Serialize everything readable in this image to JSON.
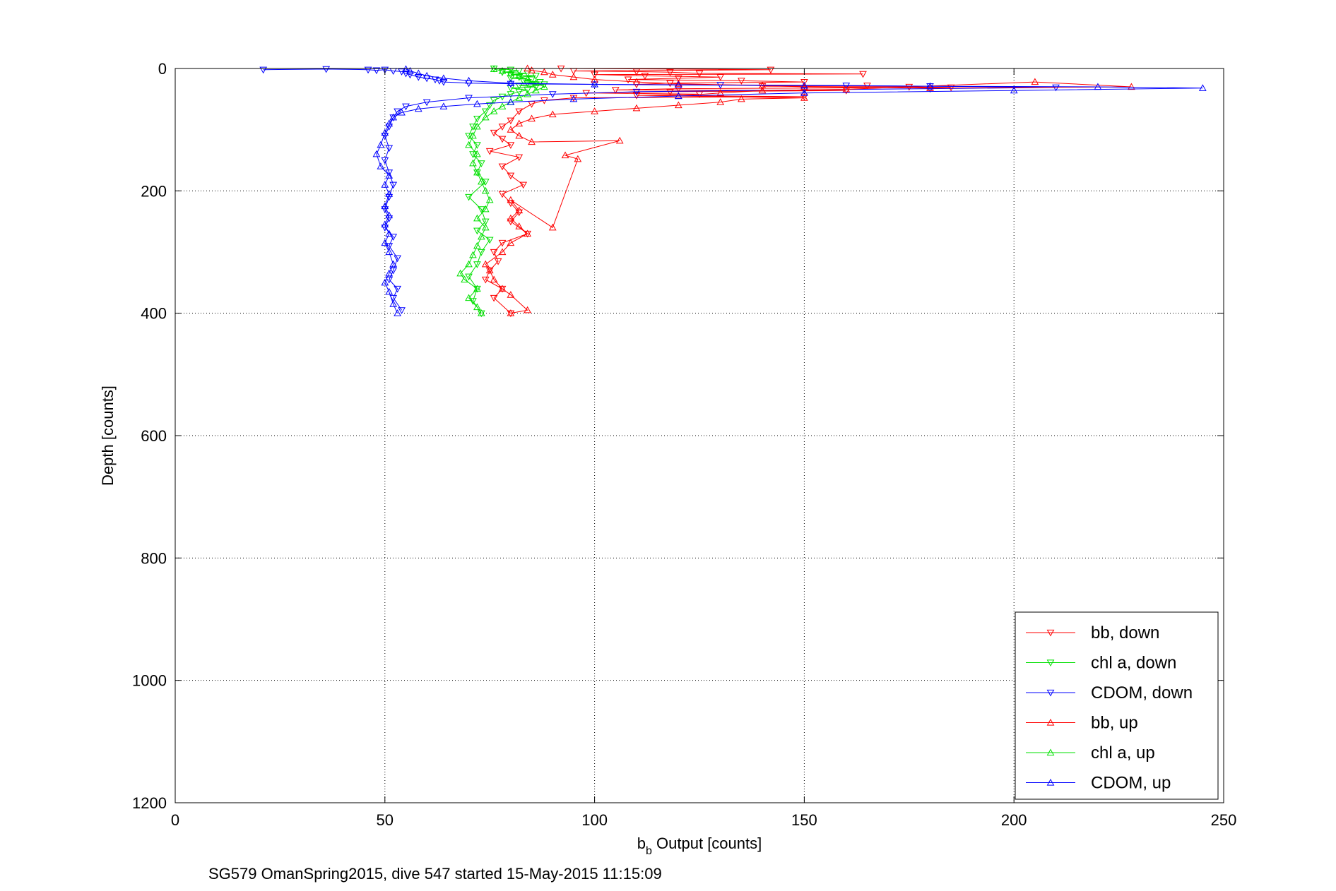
{
  "chart_data": {
    "type": "scatter",
    "title": "",
    "xlabel_main": "b",
    "xlabel_sub": "b",
    "xlabel_rest": " Output [counts]",
    "ylabel": "Depth [counts]",
    "caption": "SG579 OmanSpring2015, dive 547 started 15-May-2015 11:15:09",
    "xlim": [
      0,
      250
    ],
    "ylim": [
      0,
      1200
    ],
    "y_reversed": true,
    "grid": true,
    "legend_position": "bottom-right",
    "xticks": [
      0,
      50,
      100,
      150,
      200,
      250
    ],
    "xtick_labels": [
      "0",
      "50",
      "100",
      "150",
      "200",
      "250"
    ],
    "yticks": [
      0,
      200,
      400,
      600,
      800,
      1000,
      1200
    ],
    "ytick_labels": [
      "0",
      "200",
      "400",
      "600",
      "800",
      "1000",
      "1200"
    ],
    "series": [
      {
        "name": "bb, down",
        "color": "#ff0000",
        "marker": "triangle-down",
        "connected": true,
        "points": [
          [
            92,
            0
          ],
          [
            142,
            2
          ],
          [
            95,
            4
          ],
          [
            110,
            5
          ],
          [
            118,
            6
          ],
          [
            125,
            8
          ],
          [
            164,
            9
          ],
          [
            100,
            10
          ],
          [
            112,
            12
          ],
          [
            130,
            14
          ],
          [
            120,
            16
          ],
          [
            108,
            18
          ],
          [
            135,
            20
          ],
          [
            150,
            22
          ],
          [
            118,
            24
          ],
          [
            110,
            26
          ],
          [
            165,
            28
          ],
          [
            140,
            29
          ],
          [
            175,
            30
          ],
          [
            185,
            31
          ],
          [
            120,
            33
          ],
          [
            105,
            35
          ],
          [
            160,
            36
          ],
          [
            118,
            38
          ],
          [
            98,
            40
          ],
          [
            125,
            42
          ],
          [
            110,
            44
          ],
          [
            150,
            46
          ],
          [
            95,
            48
          ],
          [
            88,
            52
          ],
          [
            85,
            58
          ],
          [
            82,
            70
          ],
          [
            80,
            85
          ],
          [
            78,
            95
          ],
          [
            76,
            105
          ],
          [
            78,
            115
          ],
          [
            80,
            125
          ],
          [
            75,
            135
          ],
          [
            82,
            145
          ],
          [
            78,
            160
          ],
          [
            80,
            175
          ],
          [
            83,
            190
          ],
          [
            78,
            205
          ],
          [
            80,
            220
          ],
          [
            82,
            235
          ],
          [
            80,
            250
          ],
          [
            84,
            270
          ],
          [
            78,
            285
          ],
          [
            76,
            300
          ],
          [
            77,
            315
          ],
          [
            75,
            330
          ],
          [
            74,
            345
          ],
          [
            78,
            360
          ],
          [
            76,
            375
          ],
          [
            80,
            400
          ]
        ]
      },
      {
        "name": "chl a, down",
        "color": "#00e000",
        "marker": "triangle-down",
        "connected": true,
        "points": [
          [
            76,
            0
          ],
          [
            80,
            2
          ],
          [
            82,
            4
          ],
          [
            78,
            6
          ],
          [
            84,
            8
          ],
          [
            80,
            10
          ],
          [
            86,
            12
          ],
          [
            82,
            14
          ],
          [
            80,
            16
          ],
          [
            85,
            18
          ],
          [
            83,
            20
          ],
          [
            87,
            22
          ],
          [
            84,
            24
          ],
          [
            88,
            26
          ],
          [
            82,
            28
          ],
          [
            86,
            30
          ],
          [
            80,
            32
          ],
          [
            84,
            35
          ],
          [
            82,
            38
          ],
          [
            80,
            42
          ],
          [
            78,
            46
          ],
          [
            76,
            52
          ],
          [
            75,
            60
          ],
          [
            74,
            70
          ],
          [
            72,
            82
          ],
          [
            71,
            95
          ],
          [
            70,
            110
          ],
          [
            72,
            125
          ],
          [
            71,
            140
          ],
          [
            73,
            155
          ],
          [
            72,
            170
          ],
          [
            74,
            185
          ],
          [
            70,
            210
          ],
          [
            73,
            230
          ],
          [
            74,
            250
          ],
          [
            72,
            265
          ],
          [
            75,
            280
          ],
          [
            73,
            300
          ],
          [
            72,
            320
          ],
          [
            70,
            340
          ],
          [
            72,
            360
          ],
          [
            71,
            380
          ],
          [
            73,
            400
          ]
        ]
      },
      {
        "name": "CDOM, down",
        "color": "#0000ff",
        "marker": "triangle-down",
        "connected": true,
        "points": [
          [
            21,
            2
          ],
          [
            36,
            1
          ],
          [
            46,
            2
          ],
          [
            48,
            3
          ],
          [
            50,
            2
          ],
          [
            52,
            4
          ],
          [
            54,
            5
          ],
          [
            55,
            8
          ],
          [
            56,
            10
          ],
          [
            58,
            14
          ],
          [
            60,
            16
          ],
          [
            62,
            18
          ],
          [
            63,
            20
          ],
          [
            64,
            22
          ],
          [
            70,
            24
          ],
          [
            80,
            25
          ],
          [
            100,
            26
          ],
          [
            130,
            27
          ],
          [
            160,
            28
          ],
          [
            180,
            29
          ],
          [
            210,
            31
          ],
          [
            180,
            33
          ],
          [
            150,
            35
          ],
          [
            110,
            38
          ],
          [
            90,
            42
          ],
          [
            70,
            48
          ],
          [
            60,
            55
          ],
          [
            55,
            62
          ],
          [
            53,
            70
          ],
          [
            52,
            80
          ],
          [
            51,
            95
          ],
          [
            50,
            110
          ],
          [
            51,
            130
          ],
          [
            50,
            150
          ],
          [
            51,
            170
          ],
          [
            52,
            190
          ],
          [
            51,
            210
          ],
          [
            50,
            230
          ],
          [
            51,
            245
          ],
          [
            50,
            260
          ],
          [
            52,
            275
          ],
          [
            51,
            290
          ],
          [
            53,
            310
          ],
          [
            52,
            330
          ],
          [
            51,
            345
          ],
          [
            53,
            360
          ],
          [
            52,
            375
          ],
          [
            54,
            395
          ]
        ]
      },
      {
        "name": "bb, up",
        "color": "#ff0000",
        "marker": "triangle-up",
        "connected": true,
        "points": [
          [
            80,
            400
          ],
          [
            84,
            395
          ],
          [
            80,
            370
          ],
          [
            78,
            360
          ],
          [
            76,
            345
          ],
          [
            75,
            330
          ],
          [
            74,
            320
          ],
          [
            78,
            300
          ],
          [
            80,
            285
          ],
          [
            84,
            270
          ],
          [
            82,
            258
          ],
          [
            80,
            245
          ],
          [
            82,
            232
          ],
          [
            80,
            215
          ],
          [
            90,
            260
          ],
          [
            96,
            148
          ],
          [
            93,
            142
          ],
          [
            106,
            118
          ],
          [
            85,
            120
          ],
          [
            82,
            110
          ],
          [
            80,
            100
          ],
          [
            82,
            90
          ],
          [
            85,
            82
          ],
          [
            90,
            75
          ],
          [
            100,
            70
          ],
          [
            110,
            65
          ],
          [
            120,
            60
          ],
          [
            130,
            55
          ],
          [
            135,
            50
          ],
          [
            150,
            48
          ],
          [
            120,
            45
          ],
          [
            130,
            40
          ],
          [
            140,
            36
          ],
          [
            160,
            34
          ],
          [
            205,
            22
          ],
          [
            228,
            30
          ],
          [
            180,
            32
          ],
          [
            150,
            30
          ],
          [
            140,
            28
          ],
          [
            120,
            25
          ],
          [
            110,
            22
          ],
          [
            100,
            18
          ],
          [
            95,
            14
          ],
          [
            90,
            10
          ],
          [
            88,
            6
          ],
          [
            85,
            3
          ],
          [
            84,
            0
          ]
        ]
      },
      {
        "name": "chl a, up",
        "color": "#00e000",
        "marker": "triangle-up",
        "connected": true,
        "points": [
          [
            73,
            400
          ],
          [
            72,
            390
          ],
          [
            70,
            375
          ],
          [
            72,
            360
          ],
          [
            69,
            345
          ],
          [
            68,
            335
          ],
          [
            70,
            320
          ],
          [
            71,
            305
          ],
          [
            72,
            290
          ],
          [
            73,
            275
          ],
          [
            74,
            260
          ],
          [
            72,
            245
          ],
          [
            74,
            230
          ],
          [
            75,
            215
          ],
          [
            74,
            200
          ],
          [
            73,
            185
          ],
          [
            72,
            170
          ],
          [
            71,
            155
          ],
          [
            72,
            140
          ],
          [
            70,
            125
          ],
          [
            71,
            110
          ],
          [
            72,
            95
          ],
          [
            74,
            80
          ],
          [
            76,
            70
          ],
          [
            78,
            62
          ],
          [
            80,
            55
          ],
          [
            82,
            48
          ],
          [
            84,
            42
          ],
          [
            86,
            36
          ],
          [
            88,
            30
          ],
          [
            86,
            24
          ],
          [
            84,
            18
          ],
          [
            82,
            12
          ],
          [
            80,
            8
          ],
          [
            78,
            4
          ],
          [
            76,
            1
          ]
        ]
      },
      {
        "name": "CDOM, up",
        "color": "#0000ff",
        "marker": "triangle-up",
        "connected": true,
        "points": [
          [
            53,
            400
          ],
          [
            52,
            385
          ],
          [
            51,
            365
          ],
          [
            50,
            350
          ],
          [
            51,
            335
          ],
          [
            52,
            320
          ],
          [
            51,
            300
          ],
          [
            50,
            285
          ],
          [
            51,
            270
          ],
          [
            50,
            255
          ],
          [
            51,
            240
          ],
          [
            50,
            225
          ],
          [
            51,
            205
          ],
          [
            50,
            190
          ],
          [
            51,
            175
          ],
          [
            49,
            160
          ],
          [
            48,
            140
          ],
          [
            49,
            125
          ],
          [
            50,
            105
          ],
          [
            51,
            90
          ],
          [
            52,
            80
          ],
          [
            54,
            72
          ],
          [
            58,
            66
          ],
          [
            64,
            62
          ],
          [
            72,
            58
          ],
          [
            80,
            55
          ],
          [
            95,
            50
          ],
          [
            120,
            45
          ],
          [
            150,
            40
          ],
          [
            200,
            36
          ],
          [
            245,
            32
          ],
          [
            220,
            30
          ],
          [
            180,
            29
          ],
          [
            150,
            28
          ],
          [
            120,
            27
          ],
          [
            100,
            26
          ],
          [
            80,
            24
          ],
          [
            70,
            20
          ],
          [
            64,
            16
          ],
          [
            60,
            12
          ],
          [
            58,
            8
          ],
          [
            56,
            4
          ],
          [
            55,
            1
          ]
        ]
      }
    ]
  }
}
